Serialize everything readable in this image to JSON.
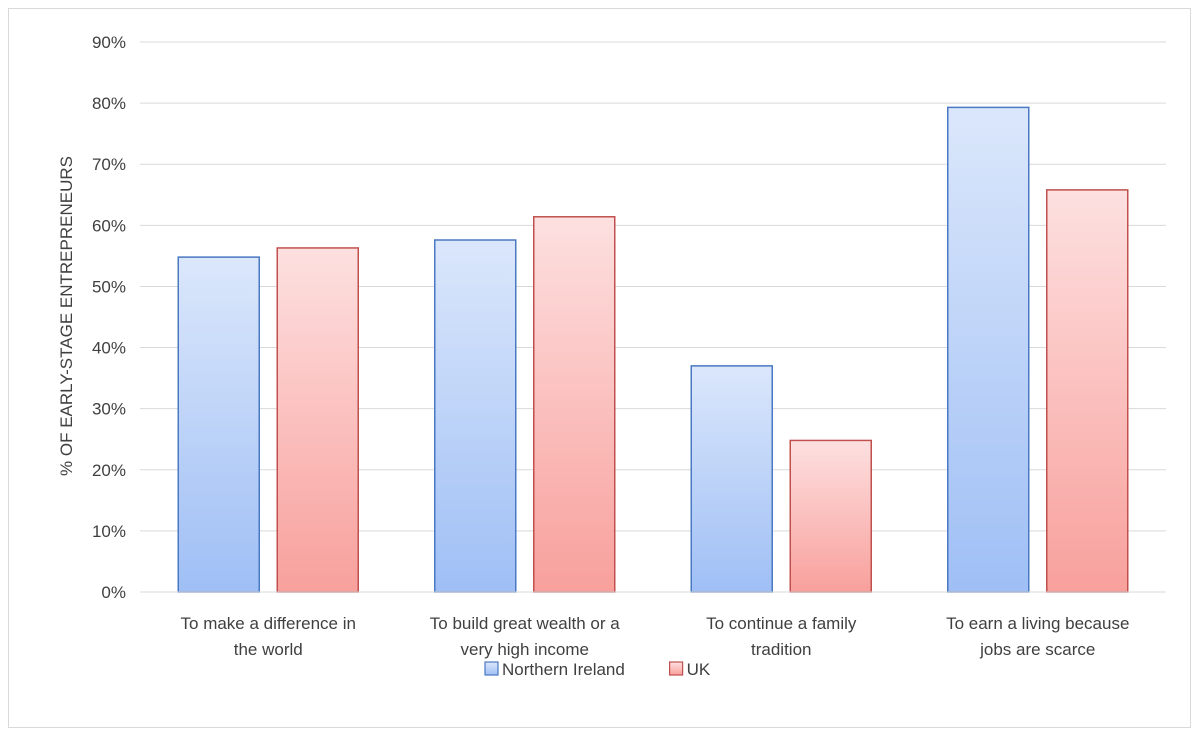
{
  "chart_data": {
    "type": "bar",
    "title": "",
    "xlabel": "",
    "ylabel": "% OF EARLY-STAGE ENTREPRENEURS",
    "ylim": [
      0,
      90
    ],
    "y_tick_step": 10,
    "y_tick_suffix": "%",
    "grid": true,
    "legend_position": "bottom",
    "categories": [
      [
        "To make a difference in",
        "the world"
      ],
      [
        "To build great wealth or a",
        "very high income"
      ],
      [
        "To continue a family",
        "tradition"
      ],
      [
        "To earn a living because",
        "jobs are scarce"
      ]
    ],
    "series": [
      {
        "name": "Northern Ireland",
        "values": [
          54.8,
          57.6,
          37.0,
          79.3
        ],
        "fill_top": "#dbe7fb",
        "fill_bottom": "#9fbff5",
        "stroke": "#4a78c2"
      },
      {
        "name": "UK",
        "values": [
          56.3,
          61.4,
          24.8,
          65.8
        ],
        "fill_top": "#fde0e0",
        "fill_bottom": "#f8a09c",
        "stroke": "#c0504d"
      }
    ]
  }
}
